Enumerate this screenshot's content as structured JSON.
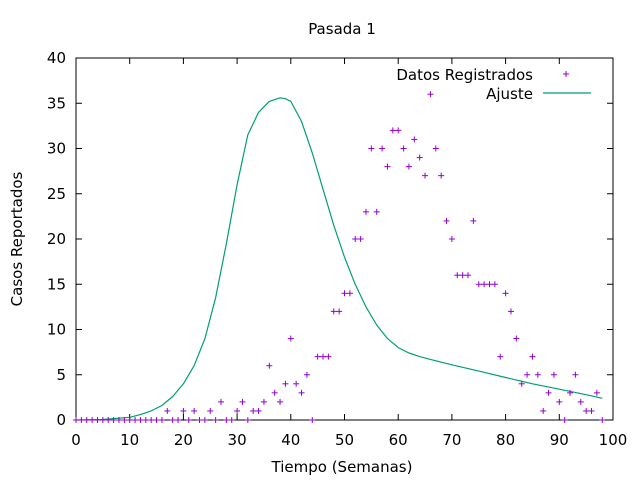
{
  "chart_data": {
    "type": "scatter",
    "title": "Pasada 1",
    "xlabel": "Tiempo (Semanas)",
    "ylabel": "Casos Reportados",
    "xlim": [
      0,
      100
    ],
    "ylim": [
      0,
      40
    ],
    "xticks": [
      "0",
      "10",
      "20",
      "30",
      "40",
      "50",
      "60",
      "70",
      "80",
      "90",
      "100"
    ],
    "yticks": [
      "0",
      "5",
      "10",
      "15",
      "20",
      "25",
      "30",
      "35",
      "40"
    ],
    "grid": false,
    "legend_position": "top-right",
    "colors": {
      "points": "#9400d3",
      "line": "#009e73",
      "axis": "#000000"
    },
    "series": [
      {
        "name": "Datos Registrados",
        "kind": "points",
        "x": [
          0,
          1,
          2,
          3,
          4,
          5,
          6,
          7,
          8,
          9,
          10,
          11,
          12,
          13,
          14,
          15,
          16,
          17,
          18,
          19,
          20,
          21,
          22,
          23,
          24,
          25,
          26,
          27,
          28,
          29,
          30,
          31,
          32,
          33,
          34,
          35,
          36,
          37,
          38,
          39,
          40,
          41,
          42,
          43,
          44,
          45,
          46,
          47,
          48,
          49,
          50,
          51,
          52,
          53,
          54,
          55,
          56,
          57,
          58,
          59,
          60,
          61,
          62,
          63,
          64,
          65,
          66,
          67,
          68,
          69,
          70,
          71,
          72,
          73,
          74,
          75,
          76,
          77,
          78,
          79,
          80,
          81,
          82,
          83,
          84,
          85,
          86,
          87,
          88,
          89,
          90,
          91,
          92,
          93,
          94,
          95,
          96,
          97,
          98
        ],
        "y": [
          0,
          0,
          0,
          0,
          0,
          0,
          0,
          0,
          0,
          0,
          0,
          0,
          0,
          0,
          0,
          0,
          0,
          1,
          0,
          0,
          1,
          0,
          1,
          0,
          0,
          1,
          0,
          2,
          0,
          0,
          1,
          2,
          0,
          1,
          1,
          2,
          6,
          3,
          2,
          4,
          9,
          4,
          3,
          5,
          0,
          7,
          7,
          7,
          12,
          12,
          14,
          14,
          20,
          20,
          23,
          30,
          23,
          30,
          28,
          32,
          32,
          30,
          28,
          31,
          29,
          27,
          36,
          30,
          27,
          22,
          20,
          16,
          16,
          16,
          22,
          15,
          15,
          15,
          15,
          7,
          14,
          12,
          9,
          4,
          5,
          7,
          5,
          1,
          3,
          5,
          2,
          0,
          3,
          5,
          2,
          1,
          1,
          3,
          0
        ]
      },
      {
        "name": "Ajuste",
        "kind": "line",
        "x": [
          0,
          5,
          10,
          12,
          14,
          16,
          18,
          20,
          22,
          24,
          26,
          28,
          30,
          32,
          34,
          36,
          38,
          39,
          40,
          42,
          44,
          46,
          48,
          50,
          52,
          54,
          56,
          58,
          60,
          62,
          64,
          66,
          70,
          75,
          80,
          85,
          90,
          95,
          98
        ],
        "y": [
          0,
          0.05,
          0.3,
          0.6,
          1.0,
          1.6,
          2.6,
          4.0,
          6.0,
          9.0,
          13.5,
          19.5,
          26.0,
          31.5,
          34.0,
          35.2,
          35.6,
          35.5,
          35.2,
          33.0,
          29.5,
          25.5,
          21.5,
          18.0,
          15.0,
          12.5,
          10.5,
          9.0,
          8.0,
          7.4,
          7.0,
          6.7,
          6.1,
          5.4,
          4.7,
          4.0,
          3.4,
          2.8,
          2.4
        ]
      }
    ]
  }
}
